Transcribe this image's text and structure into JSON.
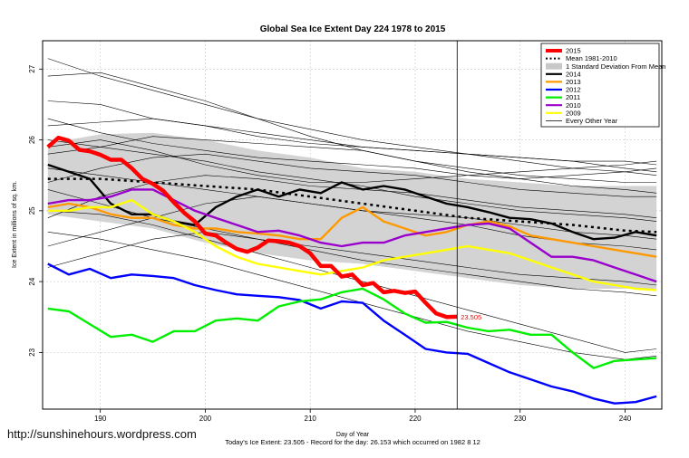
{
  "chart_data": {
    "type": "line",
    "title": "Global Sea Ice Extent Day 224 1978 to 2015",
    "xlabel": "Day of Year",
    "ylabel": "Ice Extent in millions of sq. km.",
    "xlim": [
      184.5,
      243.5
    ],
    "ylim": [
      22.2,
      27.4
    ],
    "xticks": [
      190,
      200,
      210,
      220,
      230,
      240
    ],
    "yticks": [
      23,
      24,
      25,
      26,
      27
    ],
    "grid": true,
    "legend_position": "top-right",
    "current_day": 224,
    "last_value_label": "23.505",
    "footer": "Today's Ice Extent: 23.505  -  Record for the day: 26.153 which occurred on 1982 8 12",
    "watermark": "http://sunshinehours.wordpress.com",
    "mean_band": {
      "name": "1 Standard Deviation From Mean",
      "color": "#d3d3d3",
      "x": [
        185,
        190,
        195,
        200,
        205,
        210,
        215,
        220,
        225,
        230,
        235,
        240,
        243
      ],
      "upper": [
        25.95,
        26.08,
        26.1,
        26.0,
        25.85,
        25.75,
        25.6,
        25.55,
        25.45,
        25.4,
        25.35,
        25.35,
        25.35
      ],
      "lower": [
        24.95,
        24.85,
        24.75,
        24.55,
        24.4,
        24.3,
        24.25,
        24.15,
        24.05,
        23.95,
        23.9,
        23.9,
        23.9
      ]
    },
    "mean": {
      "name": "Mean 1981-2010",
      "color": "#000000",
      "x": [
        185,
        190,
        195,
        200,
        205,
        210,
        215,
        220,
        225,
        230,
        235,
        240,
        243
      ],
      "values": [
        25.45,
        25.45,
        25.4,
        25.35,
        25.3,
        25.2,
        25.1,
        25.0,
        24.9,
        24.85,
        24.8,
        24.72,
        24.7
      ]
    },
    "series": [
      {
        "name": "2015",
        "color": "#ff0000",
        "x": [
          185,
          186,
          187,
          188,
          189,
          190,
          191,
          192,
          193,
          194,
          195,
          196,
          197,
          198,
          199,
          200,
          201,
          202,
          203,
          204,
          205,
          206,
          207,
          208,
          209,
          210,
          211,
          212,
          213,
          214,
          215,
          216,
          217,
          218,
          219,
          220,
          221,
          222,
          223,
          224
        ],
        "values": [
          25.9,
          26.03,
          25.99,
          25.86,
          25.84,
          25.79,
          25.72,
          25.72,
          25.6,
          25.45,
          25.38,
          25.28,
          25.12,
          24.97,
          24.85,
          24.68,
          24.65,
          24.55,
          24.46,
          24.42,
          24.48,
          24.58,
          24.57,
          24.55,
          24.5,
          24.4,
          24.22,
          24.22,
          24.07,
          24.1,
          23.95,
          23.98,
          23.85,
          23.87,
          23.84,
          23.86,
          23.7,
          23.55,
          23.5,
          23.505
        ]
      },
      {
        "name": "Mean 1981-2010",
        "color": "#000000",
        "values": []
      },
      {
        "name": "1 Standard Deviation From Mean",
        "color": "#d3d3d3",
        "values": []
      },
      {
        "name": "2014",
        "color": "#000000",
        "x": [
          185,
          187,
          189,
          191,
          193,
          195,
          197,
          199,
          201,
          203,
          205,
          207,
          209,
          211,
          213,
          215,
          217,
          219,
          221,
          223,
          225,
          227,
          229,
          231,
          233,
          235,
          237,
          239,
          241,
          243
        ],
        "values": [
          25.65,
          25.55,
          25.45,
          25.1,
          24.95,
          24.95,
          24.85,
          24.8,
          25.05,
          25.2,
          25.3,
          25.2,
          25.3,
          25.25,
          25.4,
          25.3,
          25.35,
          25.3,
          25.2,
          25.1,
          25.05,
          24.98,
          24.9,
          24.88,
          24.82,
          24.7,
          24.6,
          24.62,
          24.7,
          24.65
        ]
      },
      {
        "name": "2013",
        "color": "#ff9900",
        "x": [
          185,
          187,
          189,
          191,
          193,
          195,
          197,
          199,
          201,
          203,
          205,
          207,
          209,
          211,
          213,
          215,
          217,
          219,
          221,
          223,
          225,
          227,
          229,
          231,
          233,
          235,
          237,
          239,
          241,
          243
        ],
        "values": [
          25.05,
          25.1,
          25.05,
          24.95,
          24.9,
          24.9,
          24.8,
          24.75,
          24.75,
          24.7,
          24.68,
          24.65,
          24.6,
          24.6,
          24.9,
          25.05,
          24.85,
          24.75,
          24.65,
          24.7,
          24.8,
          24.85,
          24.78,
          24.65,
          24.6,
          24.55,
          24.5,
          24.45,
          24.4,
          24.35
        ]
      },
      {
        "name": "2012",
        "color": "#0000ff",
        "x": [
          185,
          187,
          189,
          191,
          193,
          195,
          197,
          199,
          201,
          203,
          205,
          207,
          209,
          211,
          213,
          215,
          217,
          219,
          221,
          223,
          225,
          227,
          229,
          231,
          233,
          235,
          237,
          239,
          241,
          243
        ],
        "values": [
          24.25,
          24.1,
          24.18,
          24.05,
          24.1,
          24.08,
          24.05,
          23.95,
          23.88,
          23.82,
          23.8,
          23.78,
          23.74,
          23.62,
          23.72,
          23.7,
          23.45,
          23.25,
          23.05,
          23.0,
          22.98,
          22.85,
          22.72,
          22.62,
          22.52,
          22.45,
          22.35,
          22.28,
          22.3,
          22.38
        ]
      },
      {
        "name": "2011",
        "color": "#00ee00",
        "x": [
          185,
          187,
          189,
          191,
          193,
          195,
          197,
          199,
          201,
          203,
          205,
          207,
          209,
          211,
          213,
          215,
          217,
          219,
          221,
          223,
          225,
          227,
          229,
          231,
          233,
          235,
          237,
          239,
          241,
          243
        ],
        "values": [
          23.62,
          23.58,
          23.4,
          23.22,
          23.25,
          23.15,
          23.3,
          23.3,
          23.45,
          23.48,
          23.45,
          23.65,
          23.72,
          23.75,
          23.85,
          23.9,
          23.75,
          23.55,
          23.42,
          23.43,
          23.35,
          23.3,
          23.32,
          23.25,
          23.25,
          23.0,
          22.78,
          22.88,
          22.9,
          22.92
        ]
      },
      {
        "name": "2010",
        "color": "#9900cc",
        "x": [
          185,
          187,
          189,
          191,
          193,
          195,
          197,
          199,
          201,
          203,
          205,
          207,
          209,
          211,
          213,
          215,
          217,
          219,
          221,
          223,
          225,
          227,
          229,
          231,
          233,
          235,
          237,
          239,
          241,
          243
        ],
        "values": [
          25.1,
          25.15,
          25.15,
          25.2,
          25.3,
          25.3,
          25.15,
          25.0,
          24.9,
          24.8,
          24.7,
          24.72,
          24.65,
          24.55,
          24.5,
          24.55,
          24.55,
          24.65,
          24.7,
          24.75,
          24.8,
          24.82,
          24.75,
          24.55,
          24.35,
          24.35,
          24.3,
          24.2,
          24.1,
          24.0
        ]
      },
      {
        "name": "2009",
        "color": "#ffff00",
        "x": [
          185,
          187,
          189,
          191,
          193,
          195,
          197,
          199,
          201,
          203,
          205,
          207,
          209,
          211,
          213,
          215,
          217,
          219,
          221,
          223,
          225,
          227,
          229,
          231,
          233,
          235,
          237,
          239,
          241,
          243
        ],
        "values": [
          25.0,
          25.0,
          25.05,
          25.05,
          25.15,
          24.95,
          24.85,
          24.7,
          24.5,
          24.35,
          24.25,
          24.2,
          24.15,
          24.1,
          24.15,
          24.2,
          24.3,
          24.35,
          24.4,
          24.45,
          24.5,
          24.45,
          24.4,
          24.3,
          24.2,
          24.1,
          24.0,
          23.95,
          23.9,
          23.88
        ]
      },
      {
        "name": "Every Other Year",
        "color": "#000000",
        "values": []
      }
    ],
    "other_years": [
      {
        "x0": 185,
        "values": [
          26.55,
          26.5,
          26.3,
          26.2,
          26.1,
          26.0,
          25.9,
          25.85,
          25.8,
          25.75,
          25.7,
          25.7,
          25.65
        ]
      },
      {
        "x0": 185,
        "values": [
          26.2,
          26.25,
          26.3,
          26.2,
          26.05,
          25.95,
          25.9,
          25.85,
          25.8,
          25.7,
          25.6,
          25.55,
          25.5
        ]
      },
      {
        "x0": 185,
        "values": [
          25.8,
          25.9,
          26.05,
          26.0,
          25.95,
          25.9,
          25.85,
          25.7,
          25.6,
          25.5,
          25.45,
          25.4,
          25.4
        ]
      },
      {
        "x0": 185,
        "values": [
          25.4,
          25.6,
          25.75,
          25.8,
          25.7,
          25.6,
          25.55,
          25.5,
          25.4,
          25.3,
          25.25,
          25.2,
          25.2
        ]
      },
      {
        "x0": 185,
        "values": [
          24.9,
          25.2,
          25.4,
          25.5,
          25.45,
          25.35,
          25.3,
          25.25,
          25.15,
          25.05,
          25.0,
          24.95,
          24.9
        ]
      },
      {
        "x0": 185,
        "values": [
          24.5,
          24.7,
          24.9,
          25.1,
          25.2,
          25.1,
          25.0,
          24.95,
          24.9,
          24.8,
          24.7,
          24.65,
          24.6
        ]
      },
      {
        "x0": 185,
        "values": [
          24.2,
          24.4,
          24.6,
          24.7,
          24.6,
          24.5,
          24.4,
          24.3,
          24.2,
          24.1,
          24.05,
          24.0,
          23.95
        ]
      },
      {
        "x0": 185,
        "values": [
          27.15,
          26.9,
          26.7,
          26.5,
          26.3,
          26.15,
          26.0,
          25.9,
          25.8,
          25.75,
          25.7,
          25.6,
          25.55
        ]
      },
      {
        "x0": 185,
        "values": [
          26.9,
          26.95,
          26.75,
          26.55,
          26.3,
          26.05,
          25.85,
          25.7,
          25.55,
          25.45,
          25.35,
          25.3,
          25.25
        ]
      },
      {
        "x0": 185,
        "values": [
          26.0,
          25.9,
          25.8,
          25.7,
          25.55,
          25.45,
          25.35,
          25.2,
          25.1,
          25.0,
          24.95,
          24.9,
          24.85
        ]
      },
      {
        "x0": 185,
        "values": [
          25.6,
          25.5,
          25.4,
          25.3,
          25.2,
          25.1,
          25.0,
          24.9,
          24.8,
          24.65,
          24.55,
          24.5,
          24.45
        ]
      },
      {
        "x0": 185,
        "values": [
          25.3,
          25.1,
          24.9,
          24.75,
          24.6,
          24.45,
          24.3,
          24.2,
          24.1,
          24.0,
          23.9,
          23.85,
          23.8
        ]
      },
      {
        "x0": 185,
        "values": [
          24.7,
          24.6,
          24.45,
          24.3,
          24.1,
          23.9,
          23.7,
          23.5,
          23.3,
          23.15,
          23.0,
          22.9,
          22.95
        ]
      },
      {
        "x0": 185,
        "values": [
          25.0,
          24.95,
          24.8,
          24.6,
          24.4,
          24.2,
          24.0,
          23.8,
          23.6,
          23.4,
          23.2,
          23.0,
          23.05
        ]
      },
      {
        "x0": 185,
        "values": [
          26.3,
          26.1,
          25.95,
          25.85,
          25.75,
          25.7,
          25.65,
          25.6,
          25.5,
          25.45,
          25.5,
          25.55,
          25.6
        ]
      },
      {
        "x0": 185,
        "values": [
          25.9,
          26.0,
          25.85,
          25.65,
          25.5,
          25.4,
          25.4,
          25.45,
          25.5,
          25.55,
          25.6,
          25.65,
          25.7
        ]
      }
    ]
  },
  "legend": {
    "items": [
      {
        "label": "2015",
        "color": "#ff0000",
        "style": "thick"
      },
      {
        "label": "Mean 1981-2010",
        "color": "#000000",
        "style": "dashed"
      },
      {
        "label": "1 Standard Deviation From Mean",
        "color": "#c8c8c8",
        "style": "band"
      },
      {
        "label": "2014",
        "color": "#000000",
        "style": "medium"
      },
      {
        "label": "2013",
        "color": "#ff9900",
        "style": "medium"
      },
      {
        "label": "2012",
        "color": "#0000ff",
        "style": "medium"
      },
      {
        "label": "2011",
        "color": "#00ee00",
        "style": "medium"
      },
      {
        "label": "2010",
        "color": "#9900cc",
        "style": "medium"
      },
      {
        "label": "2009",
        "color": "#ffff00",
        "style": "medium"
      },
      {
        "label": "Every Other Year",
        "color": "#000000",
        "style": "thin"
      }
    ]
  }
}
